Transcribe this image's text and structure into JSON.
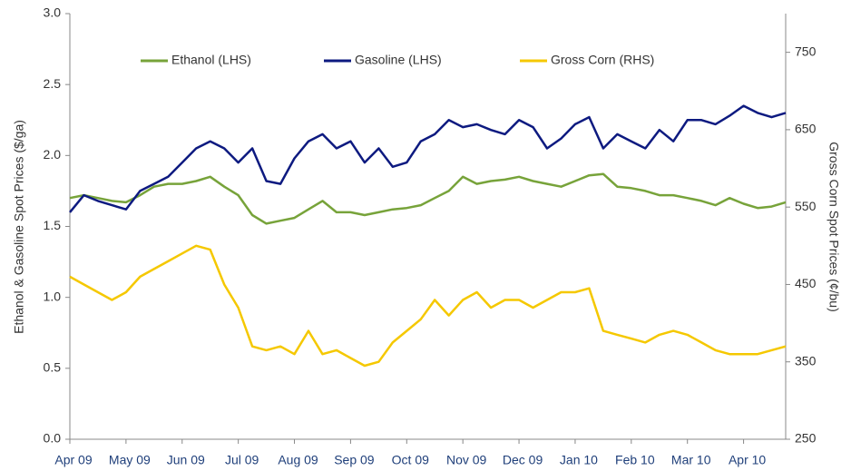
{
  "chart_data": {
    "type": "line",
    "y_label": "Ethanol & Gasoline Spot Prices ($/ga)",
    "y2_label": "Gross Corn Spot Prices (¢/bu)",
    "categories": [
      "Apr 09",
      null,
      null,
      null,
      "May 09",
      null,
      null,
      null,
      "Jun 09",
      null,
      null,
      null,
      "Jul 09",
      null,
      null,
      null,
      "Aug 09",
      null,
      null,
      null,
      "Sep 09",
      null,
      null,
      null,
      "Oct 09",
      null,
      null,
      null,
      "Nov 09",
      null,
      null,
      null,
      "Dec 09",
      null,
      null,
      null,
      "Jan 10",
      null,
      null,
      null,
      "Feb 10",
      null,
      null,
      null,
      "Mar 10",
      null,
      null,
      null,
      "Apr 10",
      null,
      null,
      null
    ],
    "series": [
      {
        "name": "Ethanol (LHS)",
        "color": "#77a33a",
        "values": [
          1.7,
          1.72,
          1.7,
          1.68,
          1.67,
          1.72,
          1.78,
          1.8,
          1.8,
          1.82,
          1.85,
          1.78,
          1.72,
          1.58,
          1.52,
          1.54,
          1.56,
          1.62,
          1.68,
          1.6,
          1.6,
          1.58,
          1.6,
          1.62,
          1.63,
          1.65,
          1.7,
          1.75,
          1.85,
          1.8,
          1.82,
          1.83,
          1.85,
          1.82,
          1.8,
          1.78,
          1.82,
          1.86,
          1.87,
          1.78,
          1.77,
          1.75,
          1.72,
          1.72,
          1.7,
          1.68,
          1.65,
          1.7,
          1.66,
          1.63,
          1.64,
          1.67
        ]
      },
      {
        "name": "Gasoline (LHS)",
        "color": "#0d1a80",
        "values": [
          1.6,
          1.72,
          1.68,
          1.65,
          1.62,
          1.75,
          1.8,
          1.85,
          1.95,
          2.05,
          2.1,
          2.05,
          1.95,
          2.05,
          1.82,
          1.8,
          1.98,
          2.1,
          2.15,
          2.05,
          2.1,
          1.95,
          2.05,
          1.92,
          1.95,
          2.1,
          2.15,
          2.25,
          2.2,
          2.22,
          2.18,
          2.15,
          2.25,
          2.2,
          2.05,
          2.12,
          2.22,
          2.27,
          2.05,
          2.15,
          2.1,
          2.05,
          2.18,
          2.1,
          2.25,
          2.25,
          2.22,
          2.28,
          2.35,
          2.3,
          2.27,
          2.3
        ]
      },
      {
        "name": "Gross Corn (RHS)",
        "color": "#f5c800",
        "axis": "y2",
        "values": [
          460,
          450,
          440,
          430,
          440,
          460,
          470,
          480,
          490,
          500,
          495,
          450,
          420,
          370,
          365,
          370,
          360,
          390,
          360,
          365,
          355,
          345,
          350,
          375,
          390,
          405,
          430,
          410,
          430,
          440,
          420,
          430,
          430,
          420,
          430,
          440,
          440,
          445,
          390,
          385,
          380,
          375,
          385,
          390,
          385,
          375,
          365,
          360,
          360,
          360,
          365,
          370
        ]
      }
    ],
    "ylim": [
      0,
      3
    ],
    "yticks": [
      {
        "value": 0,
        "label": "0.0"
      },
      0.5,
      {
        "value": 1,
        "label": "1.0"
      },
      1.5,
      {
        "value": 2,
        "label": "2.0"
      },
      2.5,
      {
        "value": 3,
        "label": "3.0"
      }
    ],
    "y2lim": [
      250,
      800
    ],
    "y2ticks": [
      250,
      350,
      450,
      550,
      650,
      750
    ],
    "legend": "top"
  }
}
